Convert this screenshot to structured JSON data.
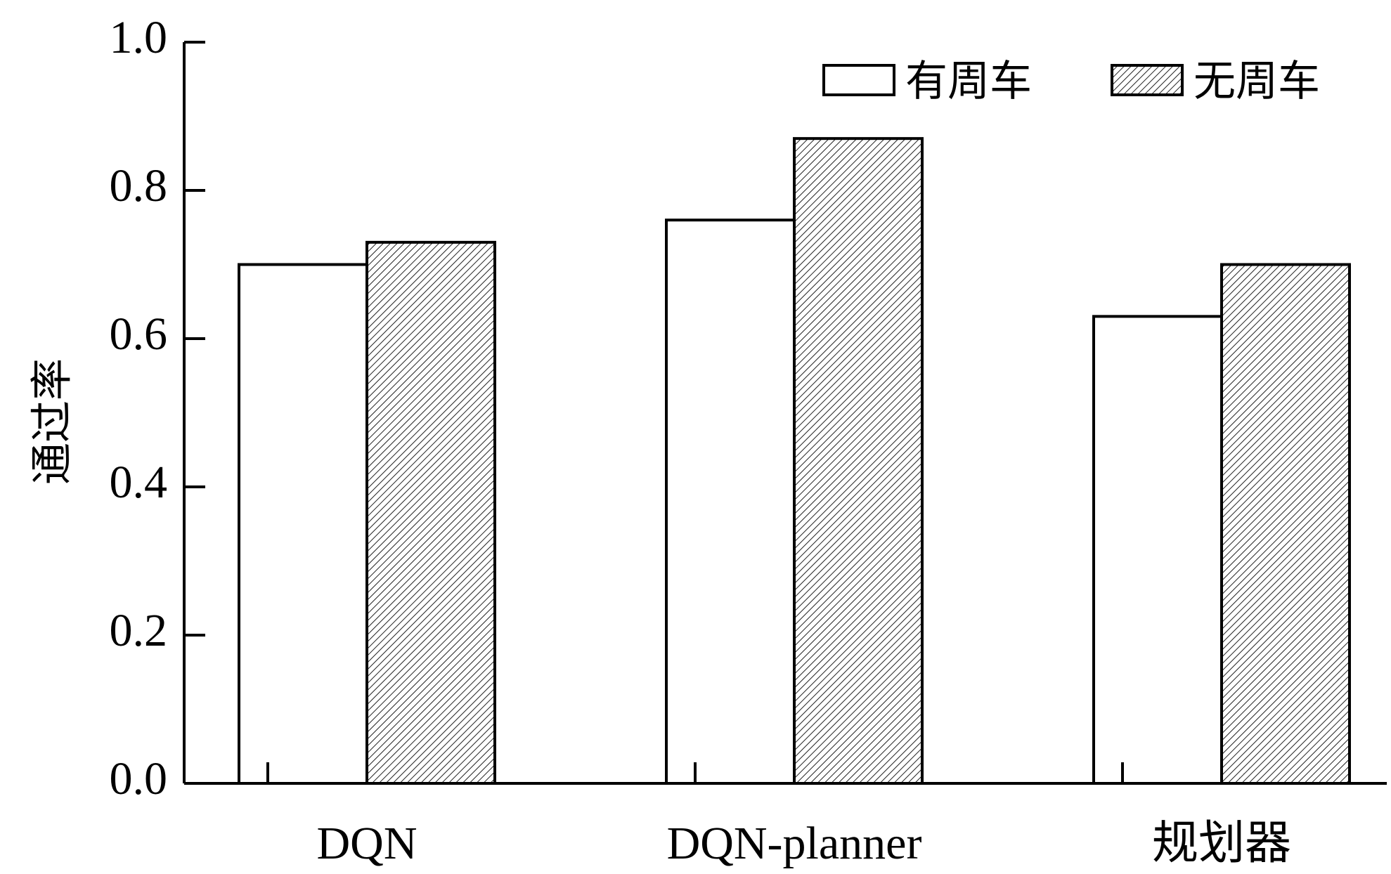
{
  "chart_data": {
    "type": "bar",
    "title": "",
    "xlabel": "",
    "ylabel": "通过率",
    "ylim": [
      0,
      1.0
    ],
    "yticks": [
      "0.0",
      "0.2",
      "0.4",
      "0.6",
      "0.8",
      "1.0"
    ],
    "categories": [
      "DQN",
      "DQN-planner",
      "规划器"
    ],
    "series": [
      {
        "name": "有周车",
        "values": [
          0.7,
          0.76,
          0.63
        ],
        "fill": "#ffffff",
        "pattern": "none"
      },
      {
        "name": "无周车",
        "values": [
          0.73,
          0.87,
          0.7
        ],
        "fill": "#ffffff",
        "pattern": "diagonal-hatch"
      }
    ],
    "legend_position": "top-right",
    "grid": false,
    "colors": {
      "line": "#000000",
      "hatch": "#222222"
    }
  }
}
